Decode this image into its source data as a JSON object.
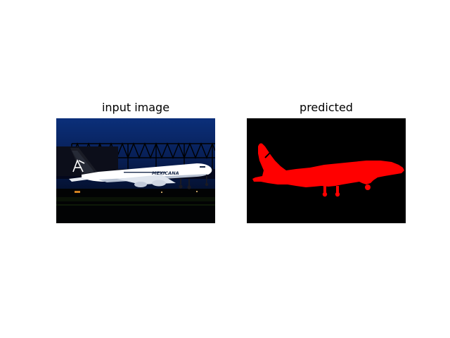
{
  "panels": [
    {
      "title": "input image"
    },
    {
      "title": "predicted"
    }
  ],
  "photo": {
    "livery_text": "MEXICANA"
  },
  "colors": {
    "mask": "#ff0000",
    "background": "#000000",
    "sky": "#0a2a66",
    "fuselage": "#ffffff"
  }
}
